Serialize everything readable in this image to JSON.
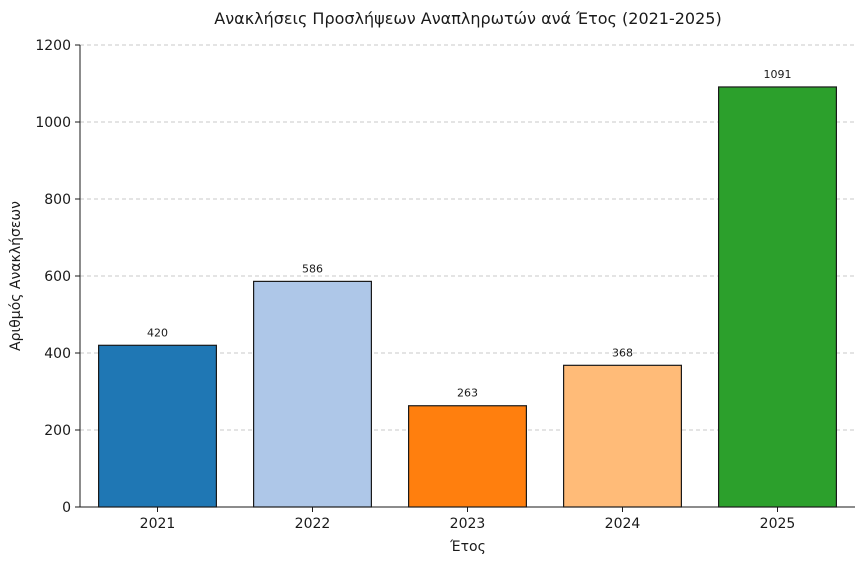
{
  "chart_data": {
    "type": "bar",
    "title": "Ανακλήσεις Προσλήψεων Αναπληρωτών ανά Έτος (2021-2025)",
    "xlabel": "Έτος",
    "ylabel": "Αριθμός Ανακλήσεων",
    "categories": [
      "2021",
      "2022",
      "2023",
      "2024",
      "2025"
    ],
    "values": [
      420,
      586,
      263,
      368,
      1091
    ],
    "colors": [
      "#1f77b4",
      "#aec7e8",
      "#ff7f0e",
      "#ffbb78",
      "#2ca02c"
    ],
    "ylim": [
      0,
      1200
    ],
    "yticks": [
      0,
      200,
      400,
      600,
      800,
      1000,
      1200
    ],
    "grid": true,
    "grid_axis": "y",
    "legend": "none"
  }
}
